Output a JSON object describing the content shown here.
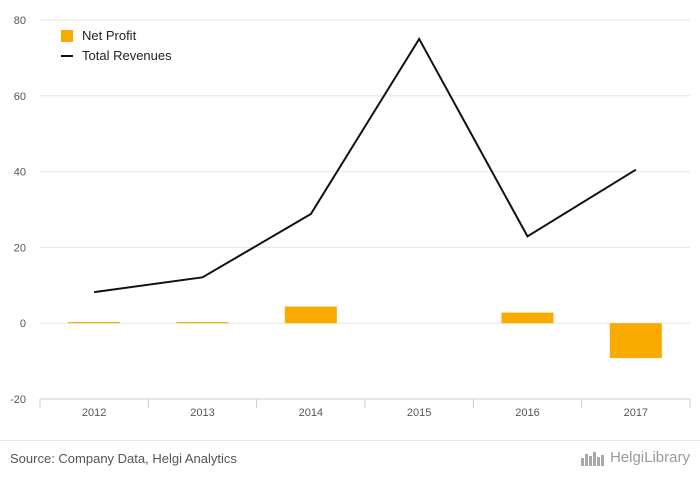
{
  "chart_data": {
    "type": "bar",
    "categories": [
      "2012",
      "2013",
      "2014",
      "2015",
      "2016",
      "2017"
    ],
    "series": [
      {
        "name": "Net Profit",
        "type": "bar",
        "color": "#f9ab00",
        "values": [
          0.3,
          0.3,
          4.4,
          0,
          2.8,
          -9.2
        ]
      },
      {
        "name": "Total Revenues",
        "type": "line",
        "color": "#111111",
        "values": [
          8.2,
          12.1,
          28.8,
          75.0,
          22.9,
          40.5
        ]
      }
    ],
    "ylim": [
      -20,
      80
    ],
    "yticks": [
      -20,
      0,
      20,
      40,
      60,
      80
    ],
    "grid": true,
    "legend_position": "top-left"
  },
  "footer": {
    "source": "Source: Company Data, Helgi Analytics",
    "brand": "HelgiLibrary",
    "brand_icon": "skyline-logo-icon"
  }
}
